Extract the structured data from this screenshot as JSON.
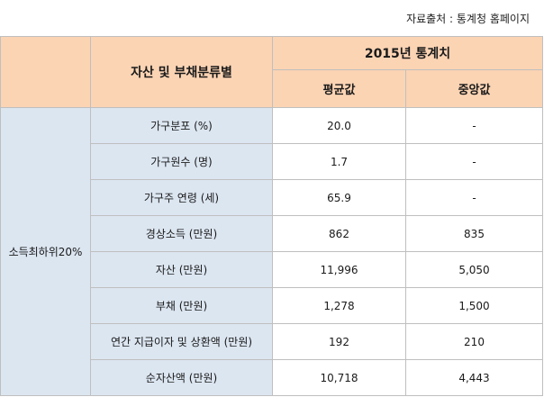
{
  "source_note": "자료출처 : 통계청 홈페이지",
  "header": {
    "category_label": "자산 및 부채분류별",
    "year_label": "2015년 통계치",
    "col_mean": "평균값",
    "col_median": "중앙값"
  },
  "group_label": "소득최하위20%",
  "rows": [
    {
      "label": "가구분포 (%)",
      "mean": "20.0",
      "median": "-"
    },
    {
      "label": "가구원수 (명)",
      "mean": "1.7",
      "median": "-"
    },
    {
      "label": "가구주 연령 (세)",
      "mean": "65.9",
      "median": "-"
    },
    {
      "label": "경상소득 (만원)",
      "mean": "862",
      "median": "835"
    },
    {
      "label": "자산 (만원)",
      "mean": "11,996",
      "median": "5,050"
    },
    {
      "label": "부채 (만원)",
      "mean": "1,278",
      "median": "1,500"
    },
    {
      "label": "연간 지급이자 및 상환액 (만원)",
      "mean": "192",
      "median": "210"
    },
    {
      "label": "순자산액 (만원)",
      "mean": "10,718",
      "median": "4,443"
    }
  ],
  "colors": {
    "header_fill": "#fbd4b4",
    "label_fill": "#dce6f1",
    "border": "#bfbfbf"
  }
}
